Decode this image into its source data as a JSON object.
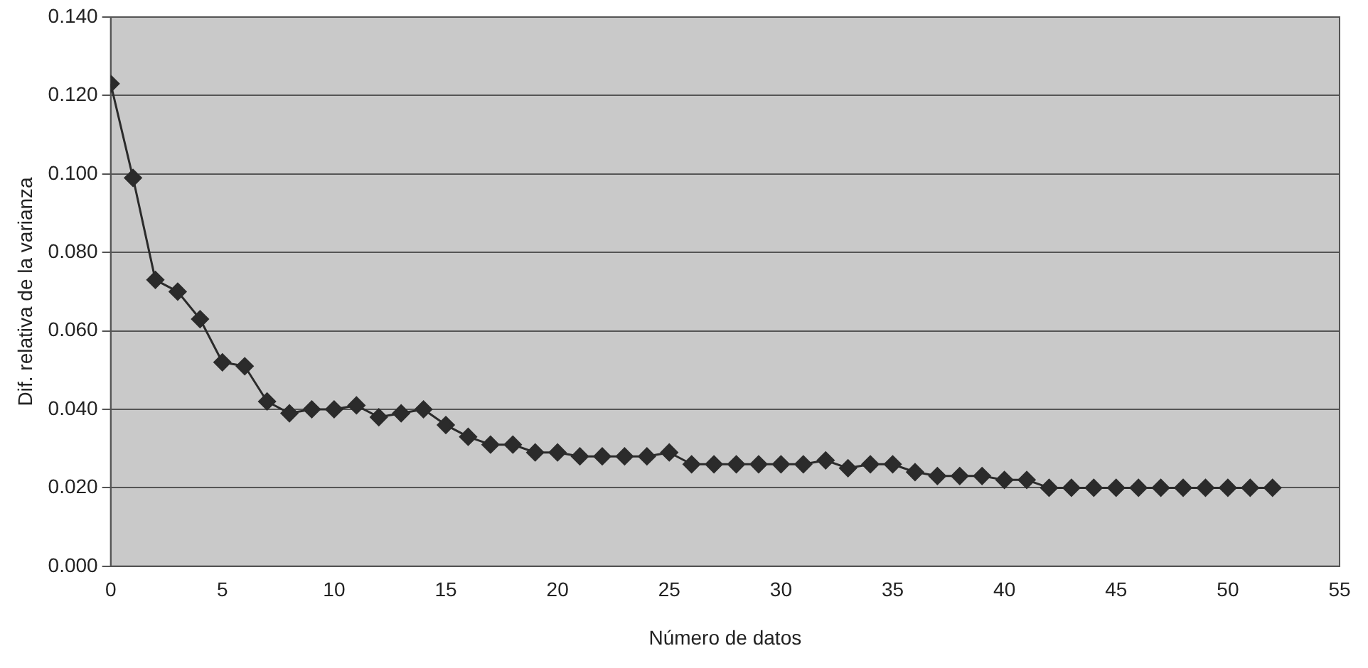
{
  "chart_data": {
    "type": "line",
    "xlabel": "Número de datos",
    "ylabel": "Dif. relativa de la varianza",
    "x": [
      0,
      1,
      2,
      3,
      4,
      5,
      6,
      7,
      8,
      9,
      10,
      11,
      12,
      13,
      14,
      15,
      16,
      17,
      18,
      19,
      20,
      21,
      22,
      23,
      24,
      25,
      26,
      27,
      28,
      29,
      30,
      31,
      32,
      33,
      34,
      35,
      36,
      37,
      38,
      39,
      40,
      41,
      42,
      43,
      44,
      45,
      46,
      47,
      48,
      49,
      50,
      51,
      52
    ],
    "series": [
      {
        "color": "#2b2b2b",
        "values": [
          0.123,
          0.099,
          0.073,
          0.07,
          0.063,
          0.052,
          0.051,
          0.042,
          0.039,
          0.04,
          0.04,
          0.041,
          0.038,
          0.039,
          0.04,
          0.036,
          0.033,
          0.031,
          0.031,
          0.029,
          0.029,
          0.028,
          0.028,
          0.028,
          0.028,
          0.029,
          0.026,
          0.026,
          0.026,
          0.026,
          0.026,
          0.026,
          0.027,
          0.025,
          0.026,
          0.026,
          0.024,
          0.023,
          0.023,
          0.023,
          0.022,
          0.022,
          0.02,
          0.02,
          0.02,
          0.02,
          0.02,
          0.02,
          0.02,
          0.02,
          0.02,
          0.02,
          0.02
        ]
      }
    ],
    "xlim": [
      0,
      55
    ],
    "xticks": [
      0,
      5,
      10,
      15,
      20,
      25,
      30,
      35,
      40,
      45,
      50,
      55
    ],
    "ylim": [
      0,
      0.14
    ],
    "yticks": [
      {
        "value": 0,
        "label": "0.000"
      },
      {
        "value": 0.02,
        "label": "0.020"
      },
      {
        "value": 0.04,
        "label": "0.040"
      },
      {
        "value": 0.06,
        "label": "0.060"
      },
      {
        "value": 0.08,
        "label": "0.080"
      },
      {
        "value": 0.1,
        "label": "0.100"
      },
      {
        "value": 0.12,
        "label": "0.120"
      },
      {
        "value": 0.14,
        "label": "0.140"
      }
    ],
    "grid": "y",
    "legend": false,
    "marker": "diamond",
    "line_style": "solid"
  }
}
